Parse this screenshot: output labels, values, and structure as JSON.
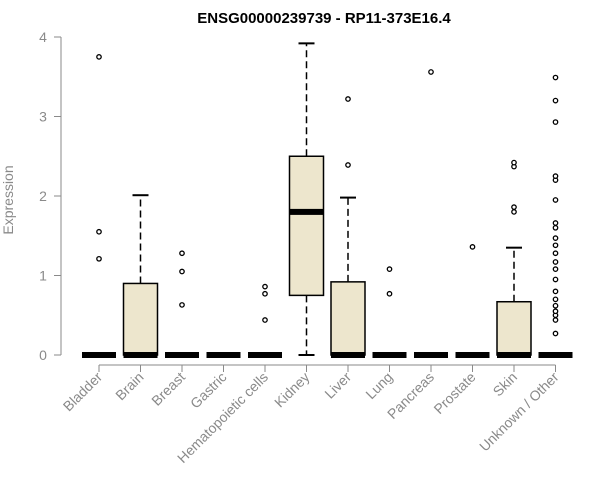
{
  "chart_data": {
    "type": "box",
    "title": "ENSG00000239739 - RP11-373E16.4",
    "xlabel": "",
    "ylabel": "Expression",
    "ylim": [
      0,
      4
    ],
    "yticks": [
      "0",
      "1",
      "2",
      "3",
      "4"
    ],
    "grid": false,
    "colors": {
      "box_fill": "#ede6cd",
      "stroke": "#000000",
      "axis": "#8a8a8a"
    },
    "categories": [
      "Bladder",
      "Brain",
      "Breast",
      "Gastric",
      "Hematopoietic cells",
      "Kidney",
      "Liver",
      "Lung",
      "Pancreas",
      "Prostate",
      "Skin",
      "Unknown / Other"
    ],
    "boxes": [
      {
        "q1": 0,
        "median": 0,
        "q3": 0,
        "whisker_low": 0,
        "whisker_high": 0,
        "outliers": [
          1.21,
          1.55,
          3.75
        ]
      },
      {
        "q1": 0,
        "median": 0,
        "q3": 0.9,
        "whisker_low": 0,
        "whisker_high": 2.01,
        "outliers": []
      },
      {
        "q1": 0,
        "median": 0,
        "q3": 0,
        "whisker_low": 0,
        "whisker_high": 0,
        "outliers": [
          0.63,
          1.05,
          1.28
        ]
      },
      {
        "q1": 0,
        "median": 0,
        "q3": 0,
        "whisker_low": 0,
        "whisker_high": 0,
        "outliers": []
      },
      {
        "q1": 0,
        "median": 0,
        "q3": 0,
        "whisker_low": 0,
        "whisker_high": 0,
        "outliers": [
          0.44,
          0.77,
          0.86
        ]
      },
      {
        "q1": 0.75,
        "median": 1.8,
        "q3": 2.5,
        "whisker_low": 0,
        "whisker_high": 3.92,
        "outliers": []
      },
      {
        "q1": 0,
        "median": 0,
        "q3": 0.92,
        "whisker_low": 0,
        "whisker_high": 1.98,
        "outliers": [
          2.39,
          3.22
        ]
      },
      {
        "q1": 0,
        "median": 0,
        "q3": 0,
        "whisker_low": 0,
        "whisker_high": 0,
        "outliers": [
          0.77,
          1.08
        ]
      },
      {
        "q1": 0,
        "median": 0,
        "q3": 0,
        "whisker_low": 0,
        "whisker_high": 0,
        "outliers": [
          3.56
        ]
      },
      {
        "q1": 0,
        "median": 0,
        "q3": 0,
        "whisker_low": 0,
        "whisker_high": 0,
        "outliers": [
          1.36
        ]
      },
      {
        "q1": 0,
        "median": 0,
        "q3": 0.67,
        "whisker_low": 0,
        "whisker_high": 1.35,
        "outliers": [
          1.8,
          1.86,
          2.37,
          2.42
        ]
      },
      {
        "q1": 0,
        "median": 0,
        "q3": 0,
        "whisker_low": 0,
        "whisker_high": 0,
        "outliers": [
          0.27,
          0.44,
          0.5,
          0.55,
          0.62,
          0.7,
          0.8,
          0.95,
          1.08,
          1.17,
          1.28,
          1.38,
          1.47,
          1.6,
          1.66,
          1.95,
          2.2,
          2.25,
          2.93,
          3.2,
          3.49
        ]
      }
    ]
  }
}
